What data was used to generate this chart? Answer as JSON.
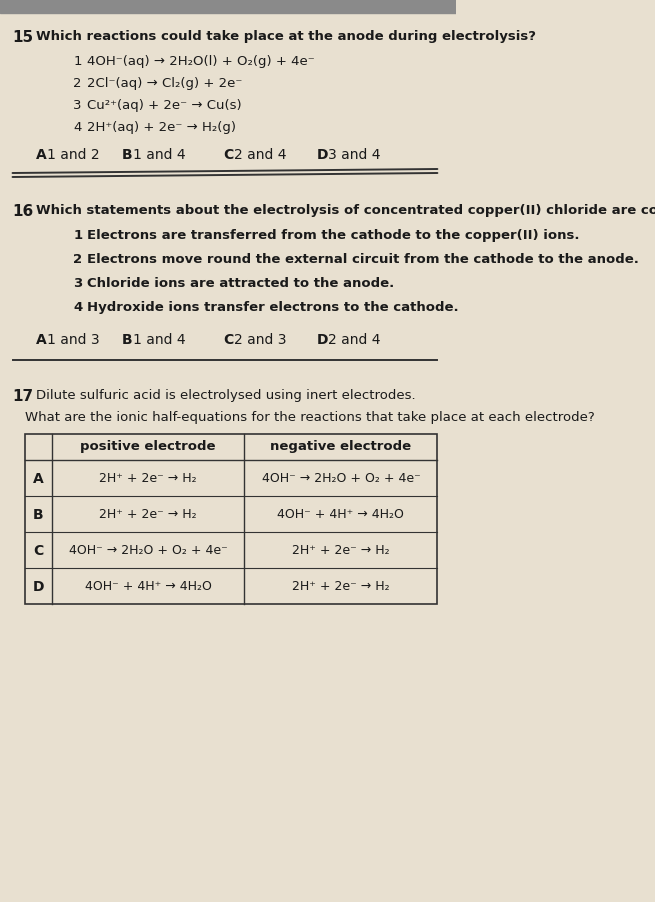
{
  "bg_color": "#e8e0d0",
  "text_color": "#1a1a1a",
  "q15_number": "15",
  "q15_question": "Which reactions could take place at the anode during electrolysis?",
  "q15_items": [
    [
      "1",
      "4OH⁻(aq) → 2H₂O(l) + O₂(g) + 4e⁻"
    ],
    [
      "2",
      "2Cl⁻(aq) → Cl₂(g) + 2e⁻"
    ],
    [
      "3",
      "Cu²⁺(aq) + 2e⁻ → Cu(s)"
    ],
    [
      "4",
      "2H⁺(aq) + 2e⁻ → H₂(g)"
    ]
  ],
  "q15_options": [
    [
      "A",
      "1 and 2"
    ],
    [
      "B",
      "1 and 4"
    ],
    [
      "C",
      "2 and 4"
    ],
    [
      "D",
      "3 and 4"
    ]
  ],
  "q16_number": "16",
  "q16_question": "Which statements about the electrolysis of concentrated copper(II) chloride are correct?",
  "q16_items": [
    [
      "1",
      "Electrons are transferred from the cathode to the copper(II) ions."
    ],
    [
      "2",
      "Electrons move round the external circuit from the cathode to the anode."
    ],
    [
      "3",
      "Chloride ions are attracted to the anode."
    ],
    [
      "4",
      "Hydroxide ions transfer electrons to the cathode."
    ]
  ],
  "q16_options": [
    [
      "A",
      "1 and 3"
    ],
    [
      "B",
      "1 and 4"
    ],
    [
      "C",
      "2 and 3"
    ],
    [
      "D",
      "2 and 4"
    ]
  ],
  "q17_number": "17",
  "q17_question": "Dilute sulfuric acid is electrolysed using inert electrodes.",
  "q17_subquestion": "What are the ionic half-equations for the reactions that take place at each electrode?",
  "table_col1_header": "positive electrode",
  "table_col2_header": "negative electrode",
  "table_rows": [
    [
      "A",
      "2H⁺ + 2e⁻ → H₂",
      "4OH⁻ → 2H₂O + O₂ + 4e⁻"
    ],
    [
      "B",
      "2H⁺ + 2e⁻ → H₂",
      "4OH⁻ + 4H⁺ → 4H₂O"
    ],
    [
      "C",
      "4OH⁻ → 2H₂O + O₂ + 4e⁻",
      "2H⁺ + 2e⁻ → H₂"
    ],
    [
      "D",
      "4OH⁻ + 4H⁺ → 4H₂O",
      "2H⁺ + 2e⁻ → H₂"
    ]
  ],
  "top_bar_color": "#8a8a8a",
  "sep_line_color": "#333333",
  "table_line_color": "#333333"
}
